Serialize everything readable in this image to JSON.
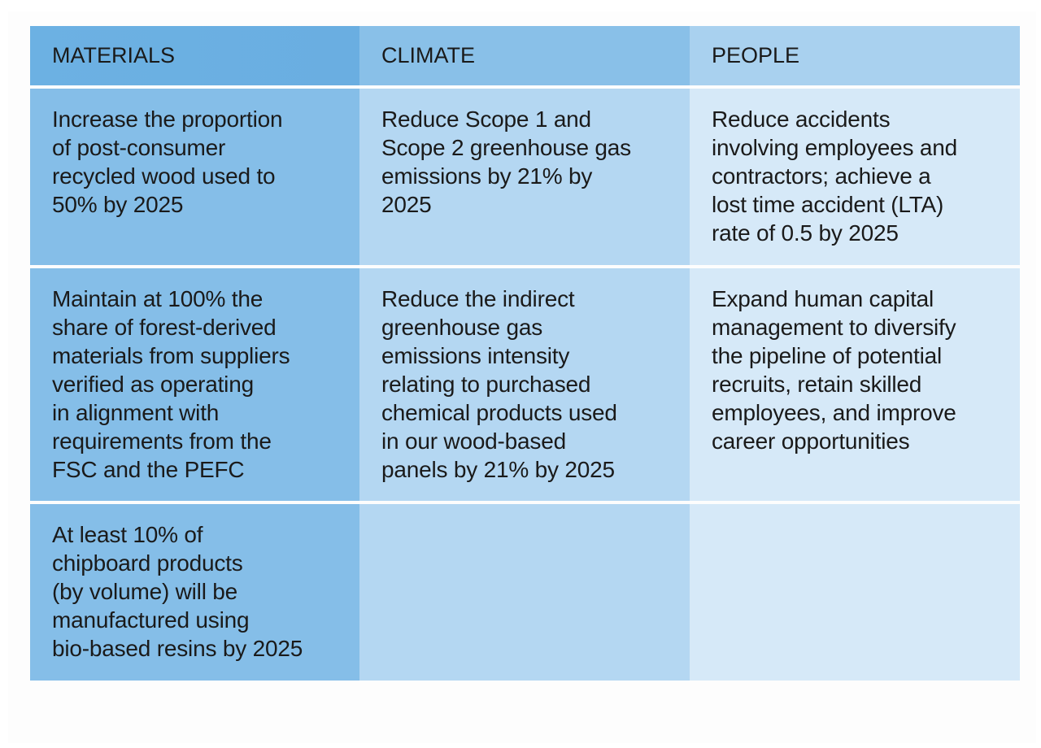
{
  "columns": [
    {
      "key": "materials",
      "header": "MATERIALS"
    },
    {
      "key": "climate",
      "header": "CLIMATE"
    },
    {
      "key": "people",
      "header": "PEOPLE"
    }
  ],
  "rows": [
    {
      "materials": [
        "Increase the proportion",
        "of post-consumer",
        "recycled wood used to",
        "50% by 2025"
      ],
      "climate": [
        "Reduce Scope 1 and",
        "Scope 2 greenhouse gas",
        "emissions by 21% by",
        "2025"
      ],
      "people": [
        "Reduce accidents",
        "involving employees and",
        "contractors; achieve a",
        "lost time accident (LTA)",
        "rate of 0.5 by 2025"
      ]
    },
    {
      "materials": [
        "Maintain at 100% the",
        "share of forest-derived",
        "materials from suppliers",
        "verified as operating",
        "in alignment with",
        "requirements from the",
        "FSC and the PEFC"
      ],
      "climate": [
        "Reduce the indirect",
        "greenhouse gas",
        "emissions intensity",
        "relating to purchased",
        "chemical products used",
        "in our wood-based",
        "panels by 21% by 2025"
      ],
      "people": [
        "Expand human capital",
        "management to diversify",
        "the pipeline of potential",
        "recruits, retain skilled",
        "employees, and improve",
        "career opportunities"
      ]
    },
    {
      "materials": [
        "At least 10% of",
        "chipboard products",
        "(by volume) will be",
        "manufactured using",
        "bio-based resins by 2025"
      ],
      "climate": [],
      "people": []
    }
  ],
  "colors": {
    "materials_header": "#6aaee1",
    "climate_header": "#89c0e8",
    "people_header": "#a9d1ef",
    "materials_cell": "#85bee8",
    "climate_cell": "#b4d7f2",
    "people_cell": "#d6e9f8"
  }
}
